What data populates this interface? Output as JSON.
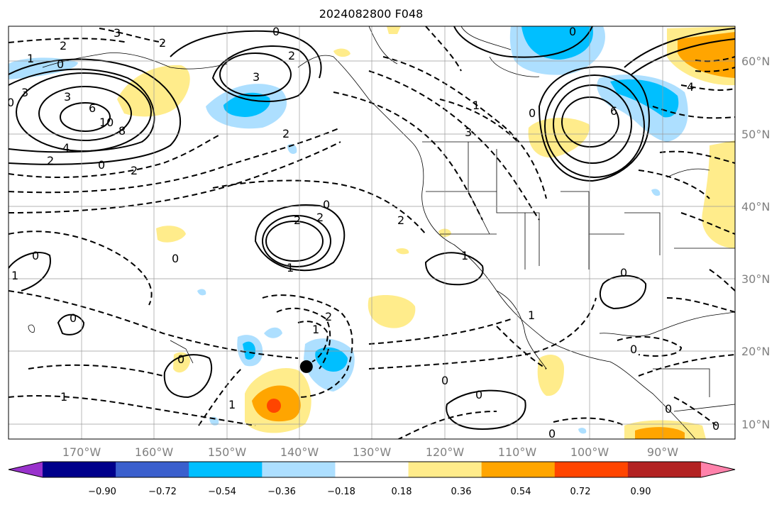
{
  "title": "2024082800 F048",
  "map": {
    "lon_range": [
      -180,
      -80
    ],
    "lat_range": [
      8,
      65
    ],
    "grid_lons": [
      -170,
      -160,
      -150,
      -140,
      -130,
      -120,
      -110,
      -100,
      -90
    ],
    "grid_lats": [
      10,
      20,
      30,
      40,
      50,
      60
    ],
    "lon_labels": [
      "170°W",
      "160°W",
      "150°W",
      "140°W",
      "130°W",
      "120°W",
      "110°W",
      "100°W",
      "90°W"
    ],
    "lat_labels": [
      "10°N",
      "20°N",
      "30°N",
      "40°N",
      "50°N",
      "60°N"
    ],
    "marker": {
      "lon": -139,
      "lat": 18,
      "color": "#000000"
    }
  },
  "colorbar": {
    "colors": [
      "#9932CC",
      "#00008B",
      "#3A5FCD",
      "#00BFFF",
      "#ADDFFF",
      "#FFFFFF",
      "#FFEC8B",
      "#FFA500",
      "#FF4500",
      "#B22222",
      "#FF82AB"
    ],
    "tick_labels": [
      "−0.90",
      "−0.72",
      "−0.54",
      "−0.36",
      "−0.18",
      "0.18",
      "0.36",
      "0.54",
      "0.72",
      "0.90"
    ]
  },
  "contour_labels": [
    "3",
    "2",
    "1",
    "0",
    "3",
    "0",
    "3",
    "6",
    "10",
    "8",
    "4",
    "2",
    "0",
    "2",
    "2",
    "3",
    "2",
    "0",
    "2",
    "1",
    "3",
    "6",
    "0",
    "0",
    "4",
    "0",
    "2",
    "2",
    "2",
    "0",
    "1",
    "1",
    "0",
    "1",
    "0",
    "0",
    "1",
    "2",
    "1",
    "0",
    "0",
    "0",
    "0",
    "0",
    "0",
    "0",
    "1",
    "1"
  ]
}
